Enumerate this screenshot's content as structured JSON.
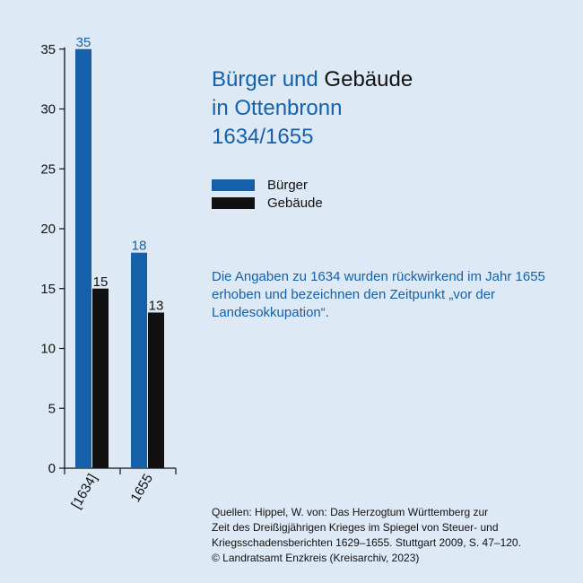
{
  "title": {
    "part1": "Bürger und",
    "part2": "Gebäude",
    "line2": "in Ottenbronn",
    "line3": "1634/1655"
  },
  "note": "Die Angaben zu 1634 wurden rückwirkend im Jahr 1655 erhoben und bezeichnen den Zeitpunkt „vor der Landesokkupation“.",
  "sources": [
    "Quellen: Hippel, W. von: Das Herzogtum Württemberg zur",
    "Zeit des Dreißigjährigen Krieges im Spiegel von Steuer- und",
    "Kriegsschadensberichten 1629–1655. Stuttgart 2009, S. 47–120.",
    "© Landratsamt Enzkreis (Kreisarchiv, 2023)"
  ],
  "colors": {
    "background": "#dde9f5",
    "buerger": "#1560a8",
    "gebaeude": "#111111"
  },
  "chart_data": {
    "type": "bar",
    "categories": [
      "[1634]",
      "1655"
    ],
    "series": [
      {
        "name": "Bürger",
        "values": [
          35,
          18
        ],
        "color": "#1560a8"
      },
      {
        "name": "Gebäude",
        "values": [
          15,
          13
        ],
        "color": "#111111"
      }
    ],
    "title": "Bürger und Gebäude in Ottenbronn 1634/1655",
    "xlabel": "",
    "ylabel": "",
    "ylim": [
      0,
      35
    ],
    "yticks": [
      0,
      5,
      10,
      15,
      20,
      25,
      30,
      35
    ],
    "grid": false,
    "legend": "right"
  }
}
